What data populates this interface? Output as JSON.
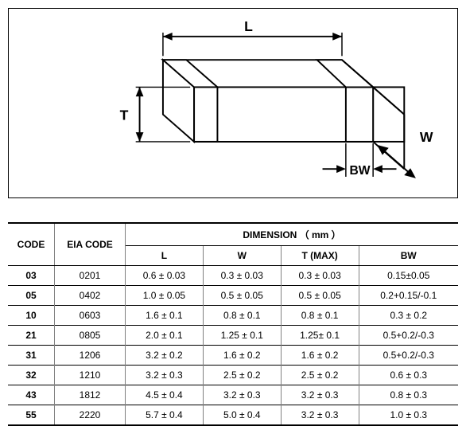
{
  "diagram": {
    "labels": {
      "L": "L",
      "T": "T",
      "W": "W",
      "BW": "BW"
    },
    "stroke": "#000000",
    "fill": "#ffffff",
    "font_family": "Arial",
    "font_weight": "bold",
    "font_size": 16
  },
  "table": {
    "headers": {
      "code": "CODE",
      "eia": "EIA  CODE",
      "dim_group": "DIMENSION （ mm ）",
      "L": "L",
      "W": "W",
      "T": "T  (MAX)",
      "BW": "BW"
    },
    "rows": [
      {
        "code": "03",
        "eia": "0201",
        "L": "0.6  ±  0.03",
        "W": "0.3  ±  0.03",
        "T": "0.3  ±  0.03",
        "BW": "0.15±0.05"
      },
      {
        "code": "05",
        "eia": "0402",
        "L": "1.0  ±  0.05",
        "W": "0.5  ±  0.05",
        "T": "0.5  ±  0.05",
        "BW": "0.2+0.15/-0.1"
      },
      {
        "code": "10",
        "eia": "0603",
        "L": "1.6  ±  0.1",
        "W": "0.8  ±  0.1",
        "T": "0.8  ±  0.1",
        "BW": "0.3  ±  0.2"
      },
      {
        "code": "21",
        "eia": "0805",
        "L": "2.0  ±  0.1",
        "W": "1.25  ±  0.1",
        "T": "1.25±  0.1",
        "BW": "0.5+0.2/-0.3"
      },
      {
        "code": "31",
        "eia": "1206",
        "L": "3.2  ±  0.2",
        "W": "1.6  ±  0.2",
        "T": "1.6  ±  0.2",
        "BW": "0.5+0.2/-0.3"
      },
      {
        "code": "32",
        "eia": "1210",
        "L": "3.2  ±  0.3",
        "W": "2.5  ±  0.2",
        "T": "2.5  ±  0.2",
        "BW": "0.6  ±  0.3"
      },
      {
        "code": "43",
        "eia": "1812",
        "L": "4.5  ±  0.4",
        "W": "3.2  ±  0.3",
        "T": "3.2  ±  0.3",
        "BW": "0.8  ±  0.3"
      },
      {
        "code": "55",
        "eia": "2220",
        "L": "5.7  ±  0.4",
        "W": "5.0  ±  0.4",
        "T": "3.2  ±  0.3",
        "BW": "1.0  ±  0.3"
      }
    ],
    "border_color": "#000000",
    "grid_color": "#808080",
    "font_size": 12,
    "header_font_weight": "bold"
  }
}
